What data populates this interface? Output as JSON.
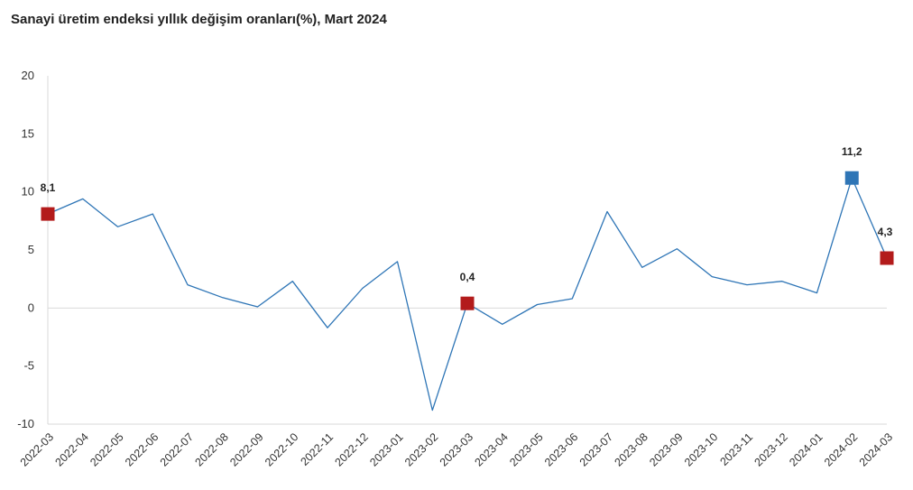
{
  "chart_data": {
    "type": "line",
    "title": "Sanayi üretim endeksi yıllık değişim oranları(%), Mart 2024",
    "xlabel": "",
    "ylabel": "",
    "ylim": [
      -10,
      20
    ],
    "yticks": [
      -10,
      -5,
      0,
      5,
      10,
      15,
      20
    ],
    "ytick_labels": [
      "-10",
      "-5",
      "0",
      "5",
      "10",
      "15",
      "20"
    ],
    "grid": false,
    "legend": "none",
    "categories": [
      "2022-03",
      "2022-04",
      "2022-05",
      "2022-06",
      "2022-07",
      "2022-08",
      "2022-09",
      "2022-10",
      "2022-11",
      "2022-12",
      "2023-01",
      "2023-02",
      "2023-03",
      "2023-04",
      "2023-05",
      "2023-06",
      "2023-07",
      "2023-08",
      "2023-09",
      "2023-10",
      "2023-11",
      "2023-12",
      "2024-01",
      "2024-02",
      "2024-03"
    ],
    "series": [
      {
        "values": [
          8.1,
          9.4,
          7.0,
          8.1,
          2.0,
          0.9,
          0.1,
          2.3,
          -1.7,
          1.7,
          4.0,
          -8.8,
          0.4,
          -1.4,
          0.3,
          0.8,
          8.3,
          3.5,
          5.1,
          2.7,
          2.0,
          2.3,
          1.3,
          11.2,
          4.3
        ],
        "color": "#2e75b6"
      }
    ],
    "highlighted_points": [
      {
        "category": "2022-03",
        "value": 8.1,
        "label": "8,1",
        "color": "#b31b1b"
      },
      {
        "category": "2023-03",
        "value": 0.4,
        "label": "0,4",
        "color": "#b31b1b"
      },
      {
        "category": "2024-02",
        "value": 11.2,
        "label": "11,2",
        "color": "#2e75b6"
      },
      {
        "category": "2024-03",
        "value": 4.3,
        "label": "4,3",
        "color": "#b31b1b"
      }
    ],
    "axis_color": "#d9d9d9"
  }
}
